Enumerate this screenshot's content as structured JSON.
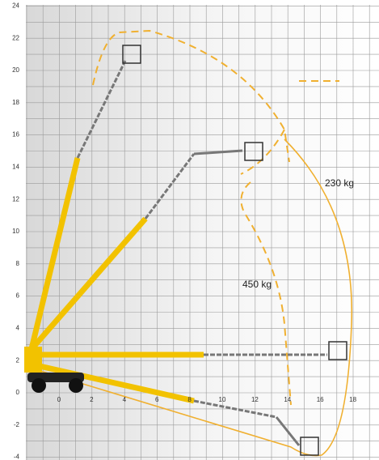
{
  "axes": {
    "xticks": [
      0,
      2,
      4,
      6,
      8,
      10,
      12,
      14,
      16,
      18
    ],
    "yticks": [
      -4,
      -2,
      0,
      2,
      4,
      6,
      8,
      10,
      12,
      14,
      16,
      18,
      20,
      22,
      24
    ]
  },
  "loads": [
    "450 kg",
    "230 kg"
  ]
}
